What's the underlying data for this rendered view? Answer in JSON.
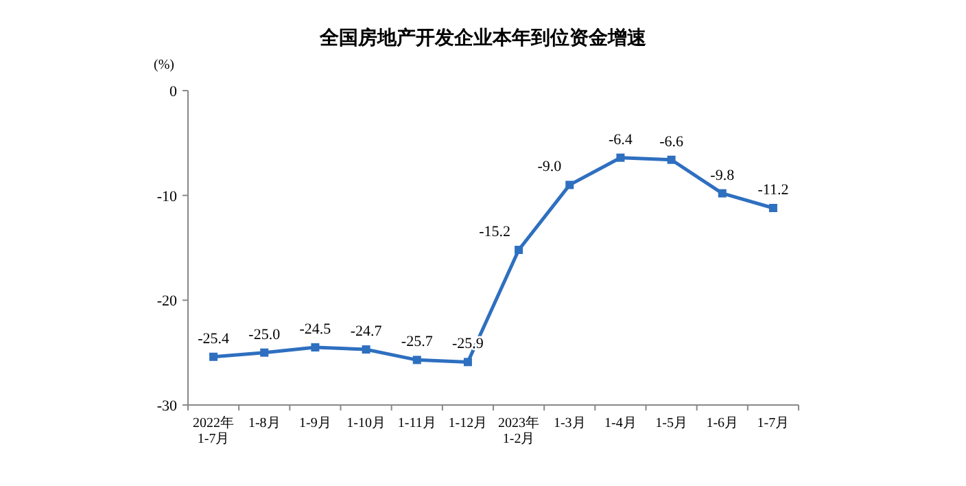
{
  "chart_data": {
    "type": "line",
    "title": "全国房地产开发企业本年到位资金增速",
    "ylabel": "(%)",
    "categories": [
      "2022年\n1-7月",
      "1-8月",
      "1-9月",
      "1-10月",
      "1-11月",
      "1-12月",
      "2023年\n1-2月",
      "1-3月",
      "1-4月",
      "1-5月",
      "1-6月",
      "1-7月"
    ],
    "series": [
      {
        "color": "#2e6fc0",
        "values": [
          -25.4,
          -25.0,
          -24.5,
          -24.7,
          -25.7,
          -25.9,
          -15.2,
          -9.0,
          -6.4,
          -6.6,
          -9.8,
          -11.2
        ],
        "value_labels": [
          "-25.4",
          "-25.0",
          "-24.5",
          "-24.7",
          "-25.7",
          "-25.9",
          "-15.2",
          "-9.0",
          "-6.4",
          "-6.6",
          "-9.8",
          "-11.2"
        ]
      }
    ],
    "ylim": [
      -30,
      0
    ],
    "yticks": [
      0,
      -10,
      -20,
      -30
    ],
    "marker": "square",
    "line_style": "solid",
    "grid": false
  }
}
